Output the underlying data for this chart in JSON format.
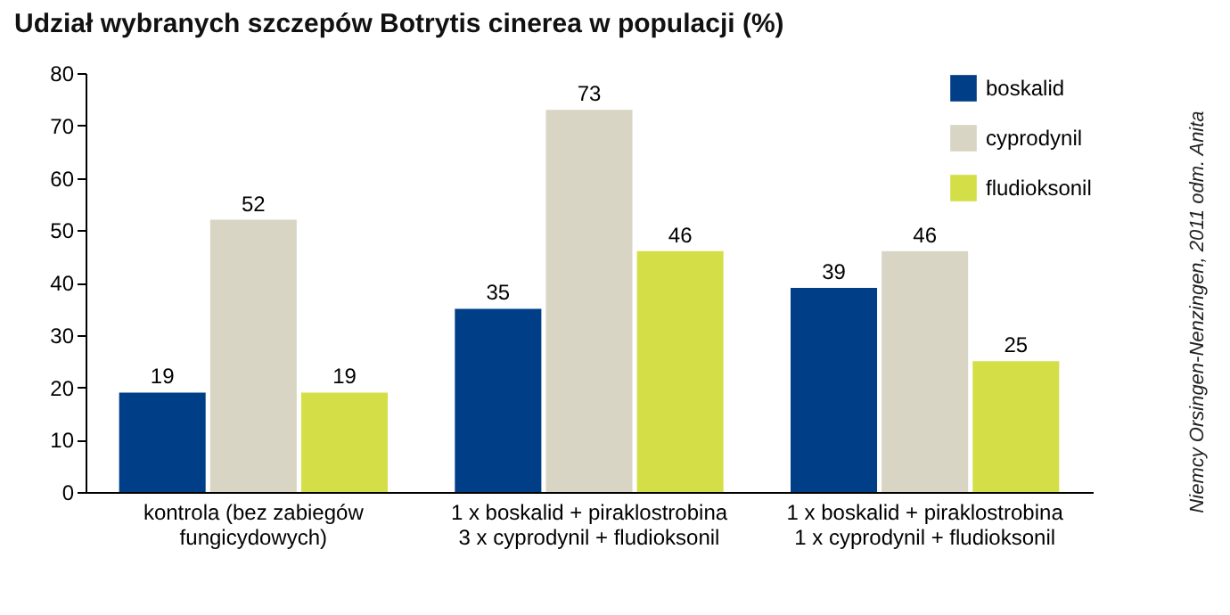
{
  "chart_data": {
    "type": "bar",
    "title": "Udział wybranych szczepów Botrytis cinerea w populacji (%)",
    "categories": [
      "kontrola (bez zabiegów\nfungicydowych)",
      "1 x boskalid + piraklostrobina\n3 x cyprodynil + fludioksonil",
      "1 x boskalid + piraklostrobina\n1 x cyprodynil + fludioksonil"
    ],
    "series": [
      {
        "name": "boskalid",
        "color": "#003f87",
        "values": [
          19,
          35,
          39
        ]
      },
      {
        "name": "cyprodynil",
        "color": "#d8d5c5",
        "values": [
          52,
          73,
          46
        ]
      },
      {
        "name": "fludioksonil",
        "color": "#d4df48",
        "values": [
          19,
          46,
          25
        ]
      }
    ],
    "ylim": [
      0,
      80
    ],
    "yticks": [
      0,
      10,
      20,
      30,
      40,
      50,
      60,
      70,
      80
    ],
    "grid": false,
    "legend": "top right",
    "data_labels": true,
    "annotations": [
      "Niemcy Orsingen-Nenzingen, 2011 odm. Anita"
    ]
  }
}
